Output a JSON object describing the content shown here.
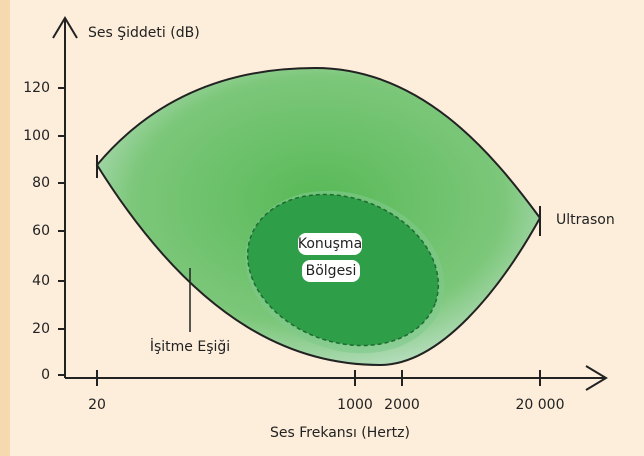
{
  "axes": {
    "y_title": "Ses Şiddeti (dB)",
    "x_title": "Ses Frekansı (Hertz)",
    "y_ticks": [
      "0",
      "20",
      "40",
      "60",
      "80",
      "100",
      "120"
    ],
    "x_ticks": [
      "20",
      "1000",
      "2000",
      "20 000"
    ]
  },
  "labels": {
    "speech": [
      "Konuşma",
      "Bölgesi"
    ],
    "threshold": "İşitme Eşiği",
    "ultrasound": "Ultrason"
  }
}
